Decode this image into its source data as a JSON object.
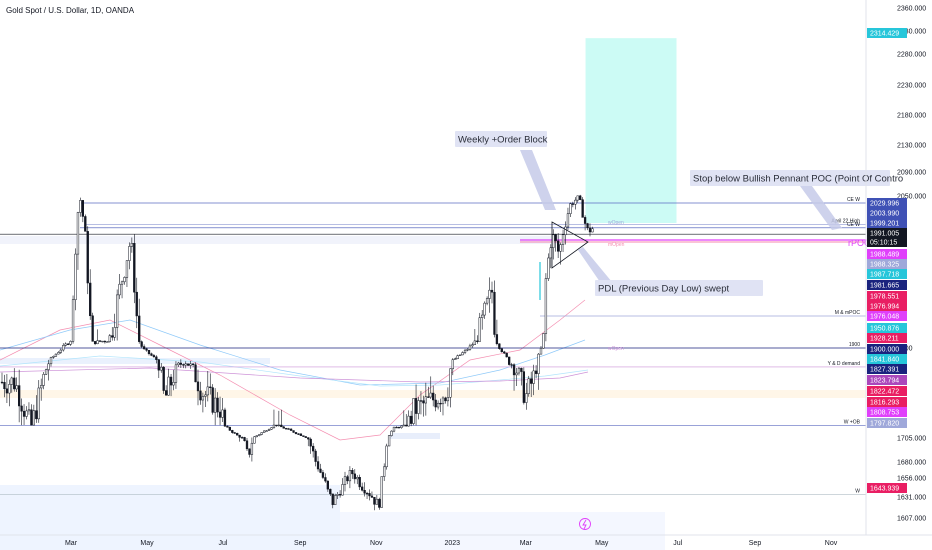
{
  "header": {
    "symbol_title": "Gold Spot / U.S. Dollar, 1D, OANDA"
  },
  "chart_data": {
    "type": "candlestick",
    "title": "Gold Spot / U.S. Dollar, 1D, OANDA",
    "x_ticks": [
      "Mar",
      "May",
      "Jul",
      "Sep",
      "Nov",
      "2023",
      "Mar",
      "May",
      "Jul",
      "Sep",
      "Nov"
    ],
    "y_ticks": [
      2360,
      2330,
      2280,
      2230,
      2180,
      2130,
      2090,
      2050,
      1900,
      1705,
      1680,
      1656,
      1631,
      1607
    ],
    "y_tick_labels": [
      "2360.000",
      "2330.000",
      "2280.000",
      "2230.000",
      "2180.000",
      "2130.000",
      "2090.000",
      "2050.000",
      "1900",
      "1705.000",
      "1680.000",
      "1656.000",
      "1631.000",
      "1607.000"
    ],
    "path": [
      [
        "2022-01-15",
        1820
      ],
      [
        "2022-01-28",
        1795
      ],
      [
        "2022-02-10",
        1830
      ],
      [
        "2022-02-22",
        1900
      ],
      [
        "2022-03-02",
        1935
      ],
      [
        "2022-03-08",
        2045
      ],
      [
        "2022-03-18",
        1920
      ],
      [
        "2022-04-01",
        1930
      ],
      [
        "2022-04-18",
        1985
      ],
      [
        "2022-04-28",
        1895
      ],
      [
        "2022-05-15",
        1810
      ],
      [
        "2022-05-31",
        1840
      ],
      [
        "2022-06-14",
        1815
      ],
      [
        "2022-06-30",
        1805
      ],
      [
        "2022-07-12",
        1725
      ],
      [
        "2022-07-21",
        1685
      ],
      [
        "2022-08-12",
        1800
      ],
      [
        "2022-09-05",
        1715
      ],
      [
        "2022-09-27",
        1625
      ],
      [
        "2022-10-12",
        1665
      ],
      [
        "2022-10-25",
        1640
      ],
      [
        "2022-11-03",
        1620
      ],
      [
        "2022-11-15",
        1775
      ],
      [
        "2022-12-01",
        1805
      ],
      [
        "2022-12-28",
        1815
      ],
      [
        "2023-01-20",
        1928
      ],
      [
        "2023-02-02",
        1955
      ],
      [
        "2023-02-15",
        1840
      ],
      [
        "2023-03-01",
        1812
      ],
      [
        "2023-03-09",
        1825
      ],
      [
        "2023-03-17",
        1960
      ],
      [
        "2023-03-22",
        1990
      ],
      [
        "2023-03-28",
        1975
      ],
      [
        "2023-04-05",
        2025
      ],
      [
        "2023-04-12",
        2045
      ],
      [
        "2023-04-19",
        1995
      ],
      [
        "2023-04-25",
        1999
      ]
    ],
    "levels": [
      {
        "label": "CE W",
        "value": 2030
      },
      {
        "label": "April 22 High",
        "value": 2003
      },
      {
        "label": "CE W",
        "value": 1999
      },
      {
        "label": "",
        "value": 1991
      },
      {
        "label": "M & mPOC",
        "value": 1942
      },
      {
        "label": "1900",
        "value": 1900
      },
      {
        "label": "Y & D demand",
        "value": 1830
      },
      {
        "label": "W +OB",
        "value": 1794
      },
      {
        "label": "W",
        "value": 1635
      }
    ],
    "annotations": [
      "Weekly +Order Block",
      "Stop below Bullish Pennant POC (Point Of Contro",
      "PDL (Previous Day Low) swept",
      "rPOC",
      "wOpen",
      "mOpen"
    ],
    "price_scale_badges": [
      {
        "text": "2314.429",
        "color": "#26c6da"
      },
      {
        "text": "2029.996",
        "color": "#3f51b5"
      },
      {
        "text": "2003.990",
        "color": "#3f51b5"
      },
      {
        "text": "1999.201",
        "color": "#3f51b5"
      },
      {
        "text": "1991.005",
        "color": "#131722"
      },
      {
        "text": "05:10:15",
        "color": "#131722"
      },
      {
        "text": "1988.489",
        "color": "#e040fb"
      },
      {
        "text": "1988.325",
        "color": "#9fa8da"
      },
      {
        "text": "1987.718",
        "color": "#26c6da"
      },
      {
        "text": "1981.665",
        "color": "#1a237e"
      },
      {
        "text": "1978.551",
        "color": "#e91e63"
      },
      {
        "text": "1976.994",
        "color": "#e91e63"
      },
      {
        "text": "1976.048",
        "color": "#e040fb"
      },
      {
        "text": "1950.876",
        "color": "#26c6da"
      },
      {
        "text": "1928.211",
        "color": "#e91e63"
      },
      {
        "text": "1900.000",
        "color": "#1a237e"
      },
      {
        "text": "1841.840",
        "color": "#26c6da"
      },
      {
        "text": "1827.391",
        "color": "#1a237e"
      },
      {
        "text": "1823.794",
        "color": "#ab47bc"
      },
      {
        "text": "1822.472",
        "color": "#e91e63"
      },
      {
        "text": "1816.293",
        "color": "#e91e63"
      },
      {
        "text": "1808.753",
        "color": "#e040fb"
      },
      {
        "text": "1797.820",
        "color": "#9fa8da"
      },
      {
        "text": "1643.939",
        "color": "#e91e63"
      }
    ],
    "target_zone": {
      "from": "2023-04-18",
      "to": "2023-06-30",
      "low": 2005,
      "high": 2314.429
    },
    "colors": {
      "candle": "#131722",
      "zone": "#ccfbf5",
      "callout": "#e0e3f4",
      "arrow": "#c5cae9"
    },
    "grid": false,
    "xlabel": "",
    "ylabel": ""
  }
}
